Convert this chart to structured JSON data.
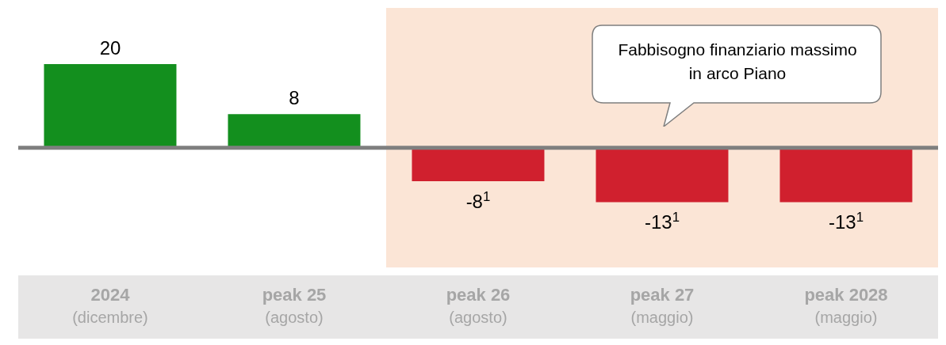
{
  "chart_data": {
    "type": "bar",
    "categories": [
      "2024\n(dicembre)",
      "peak 25\n(agosto)",
      "peak 26\n(agosto)",
      "peak 27\n(maggio)",
      "peak 2028\n(maggio)"
    ],
    "values": [
      20,
      8,
      -8,
      -13,
      -13
    ],
    "colors": [
      "#138f1e",
      "#138f1e",
      "#d0202e",
      "#d0202e",
      "#d0202e"
    ],
    "value_labels": [
      "20",
      "8",
      "-8$^{1}$",
      "-13$^{1}$",
      "-13$^{1}$"
    ],
    "bands": [
      {
        "axis": "x",
        "from": "peak 26\n(agosto)",
        "to": "peak 2028\n(maggio)",
        "color": "#fbe5d6"
      }
    ],
    "ref_lines": [
      {
        "axis": "y",
        "value": 0,
        "color": "#7f7f7f"
      }
    ],
    "annotations": [
      "Fabbisogno finanziario massimo in arco Piano"
    ]
  }
}
